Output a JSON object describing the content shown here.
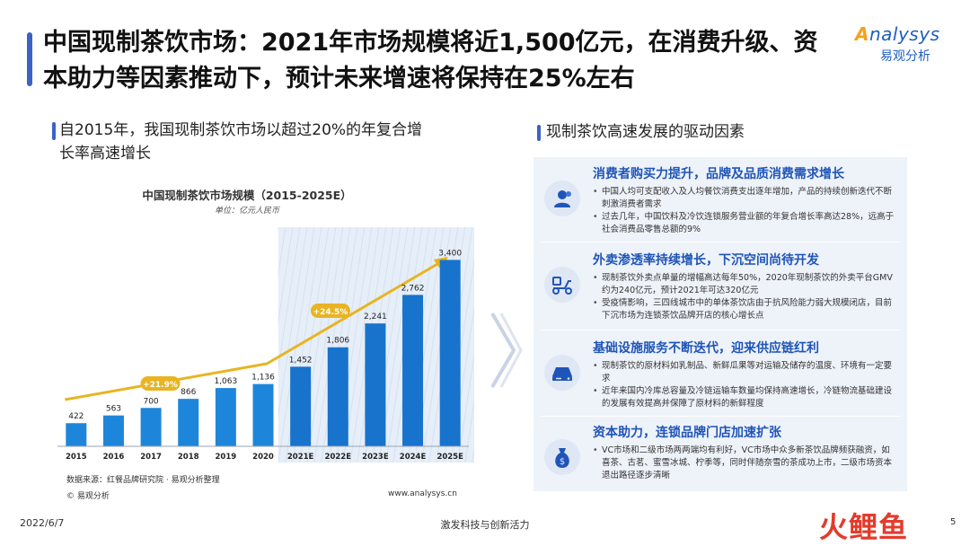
{
  "title": "中国现制茶饮市场：2021年市场规模将近1,500亿元，在消费升级、资本助力等因素推动下，预计未来增速将保持在25%左右",
  "logo": {
    "brand": "nalysys",
    "brand_initial": "A",
    "cn": "易观分析"
  },
  "left_heading": "自2015年，我国现制茶饮市场以超过20%的年复合增长率高速增长",
  "right_heading": "现制茶饮高速发展的驱动因素",
  "chart_data": {
    "type": "bar",
    "title": "中国现制茶饮市场规模（2015-2025E）",
    "unit": "单位：亿元人民币",
    "categories": [
      "2015",
      "2016",
      "2017",
      "2018",
      "2019",
      "2020",
      "2021E",
      "2022E",
      "2023E",
      "2024E",
      "2025E"
    ],
    "values": [
      422,
      563,
      700,
      866,
      1063,
      1136,
      1452,
      1806,
      2241,
      2762,
      3400
    ],
    "value_labels": [
      "422",
      "563",
      "700",
      "866",
      "1,063",
      "1,136",
      "1,452",
      "1,806",
      "2,241",
      "2,762",
      "3,400"
    ],
    "ylim": [
      0,
      3800
    ],
    "forecast_from_index": 6,
    "growth_labels": [
      "+21.9%",
      "+24.5%"
    ],
    "colors": {
      "actual": "#1e86da",
      "forecast": "#1873cc",
      "trend": "#e8b422",
      "growth_badge": "#e8b422"
    }
  },
  "source": "数据来源：红餐品牌研究院 · 易观分析整理",
  "copyright": "© 易观分析",
  "website": "www.analysys.cn",
  "drivers": [
    {
      "icon": "user-icon",
      "title": "消费者购买力提升，品牌及品质消费需求增长",
      "bullets": [
        "中国人均可支配收入及人均餐饮消费支出逐年增加，产品的持续创新迭代不断刺激消费者需求",
        "过去几年，中国饮料及冷饮连锁服务营业额的年复合增长率高达28%，远高于社会消费品零售总额的9%"
      ]
    },
    {
      "icon": "scooter-icon",
      "title": "外卖渗透率持续增长，下沉空间尚待开发",
      "bullets": [
        "现制茶饮外卖点单量的增幅高达每年50%，2020年现制茶饮的外卖平台GMV约为240亿元，预计2021年可达320亿元",
        "受疫情影响，三四线城市中的单体茶饮店由于抗风险能力弱大规模闭店，目前下沉市场为连锁茶饮品牌开店的核心增长点"
      ]
    },
    {
      "icon": "storage-icon",
      "title": "基础设施服务不断迭代，迎来供应链红利",
      "bullets": [
        "现制茶饮的原材料如乳制品、新鲜瓜果等对运输及储存的温度、环境有一定要求",
        "近年来国内冷库总容量及冷链运输车数量均保持高速增长，冷链物流基础建设的发展有效提高并保障了原材料的新鲜程度"
      ]
    },
    {
      "icon": "money-icon",
      "title": "资本助力，连锁品牌门店加速扩张",
      "bullets": [
        "VC市场和二级市场两两端均有利好，VC市场中众多新茶饮品牌频获融资，如喜茶、古茗、蜜雪冰城、柠季等，同时伴随奈雪的茶成功上市，二级市场资本退出路径逐步清晰"
      ]
    }
  ],
  "footer": {
    "date": "2022/6/7",
    "slogan": "激发科技与创新活力",
    "brand_1": "火",
    "brand_2": "鲤鱼",
    "page": "5"
  }
}
